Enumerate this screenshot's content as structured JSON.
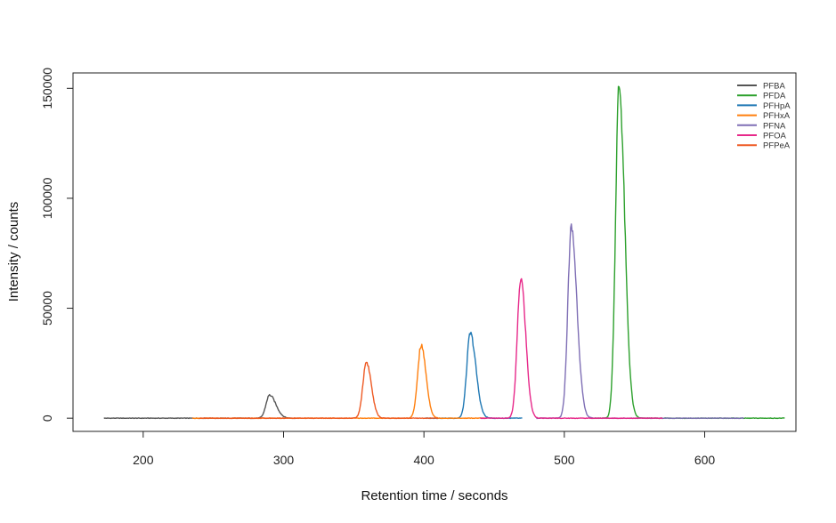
{
  "chart_data": {
    "type": "line",
    "xlabel": "Retention time / seconds",
    "ylabel": "Intensity / counts",
    "xlim": [
      150,
      665
    ],
    "ylim": [
      -6000,
      157000
    ],
    "x_ticks": [
      200,
      300,
      400,
      500,
      600
    ],
    "y_ticks": [
      0,
      50000,
      100000,
      150000
    ],
    "legend_position": "top-right",
    "grid": false,
    "series": [
      {
        "name": "PFBA",
        "color": "#555555",
        "x_range": [
          172,
          310
        ],
        "peak_rt": 290,
        "peak_height": 10500,
        "width_left": 2.5,
        "width_right": 4.5,
        "points": [
          [
            172,
            0
          ],
          [
            280,
            0
          ],
          [
            286,
            3500
          ],
          [
            289,
            9500
          ],
          [
            290,
            10500
          ],
          [
            292,
            8000
          ],
          [
            296,
            3000
          ],
          [
            302,
            500
          ],
          [
            310,
            0
          ]
        ]
      },
      {
        "name": "PFDA",
        "color": "#2ca02c",
        "x_range": [
          520,
          657
        ],
        "peak_rt": 539,
        "peak_height": 151000,
        "width_left": 2.5,
        "width_right": 4,
        "points": [
          [
            520,
            0
          ],
          [
            533,
            2000
          ],
          [
            536,
            60000
          ],
          [
            538,
            140000
          ],
          [
            539,
            151000
          ],
          [
            541,
            110000
          ],
          [
            544,
            40000
          ],
          [
            548,
            8000
          ],
          [
            556,
            500
          ],
          [
            657,
            0
          ]
        ]
      },
      {
        "name": "PFHpA",
        "color": "#1f78b4",
        "x_range": [
          400,
          470
        ],
        "peak_rt": 433,
        "peak_height": 38500,
        "width_left": 2.5,
        "width_right": 4,
        "points": [
          [
            400,
            0
          ],
          [
            427,
            2000
          ],
          [
            430,
            20000
          ],
          [
            433,
            38500
          ],
          [
            436,
            25000
          ],
          [
            440,
            6000
          ],
          [
            446,
            800
          ],
          [
            470,
            0
          ]
        ]
      },
      {
        "name": "PFHxA",
        "color": "#ff7f0e",
        "x_range": [
          235,
          445
        ],
        "peak_rt": 398,
        "peak_height": 33000,
        "width_left": 2.5,
        "width_right": 3.5,
        "points": [
          [
            235,
            0
          ],
          [
            392,
            1500
          ],
          [
            395,
            18000
          ],
          [
            398,
            33000
          ],
          [
            401,
            18000
          ],
          [
            405,
            3000
          ],
          [
            412,
            300
          ],
          [
            445,
            0
          ]
        ]
      },
      {
        "name": "PFNA",
        "color": "#7f6fb5",
        "x_range": [
          480,
          628
        ],
        "peak_rt": 505,
        "peak_height": 86500,
        "width_left": 2.5,
        "width_right": 4,
        "points": [
          [
            480,
            0
          ],
          [
            499,
            3000
          ],
          [
            502,
            40000
          ],
          [
            505,
            86500
          ],
          [
            508,
            60000
          ],
          [
            512,
            18000
          ],
          [
            518,
            2500
          ],
          [
            628,
            0
          ]
        ]
      },
      {
        "name": "PFOA",
        "color": "#e7298a",
        "x_range": [
          440,
          570
        ],
        "peak_rt": 469,
        "peak_height": 63500,
        "width_left": 2.5,
        "width_right": 3.5,
        "points": [
          [
            440,
            0
          ],
          [
            463,
            2500
          ],
          [
            466,
            30000
          ],
          [
            469,
            63500
          ],
          [
            472,
            42000
          ],
          [
            476,
            10000
          ],
          [
            483,
            1000
          ],
          [
            570,
            0
          ]
        ]
      },
      {
        "name": "PFPeA",
        "color": "#ee5a24",
        "x_range": [
          240,
          410
        ],
        "peak_rt": 359,
        "peak_height": 25500,
        "width_left": 2.5,
        "width_right": 3.5,
        "points": [
          [
            240,
            0
          ],
          [
            353,
            1500
          ],
          [
            356,
            14000
          ],
          [
            359,
            25500
          ],
          [
            362,
            15000
          ],
          [
            366,
            2500
          ],
          [
            373,
            200
          ],
          [
            410,
            0
          ]
        ]
      }
    ]
  }
}
